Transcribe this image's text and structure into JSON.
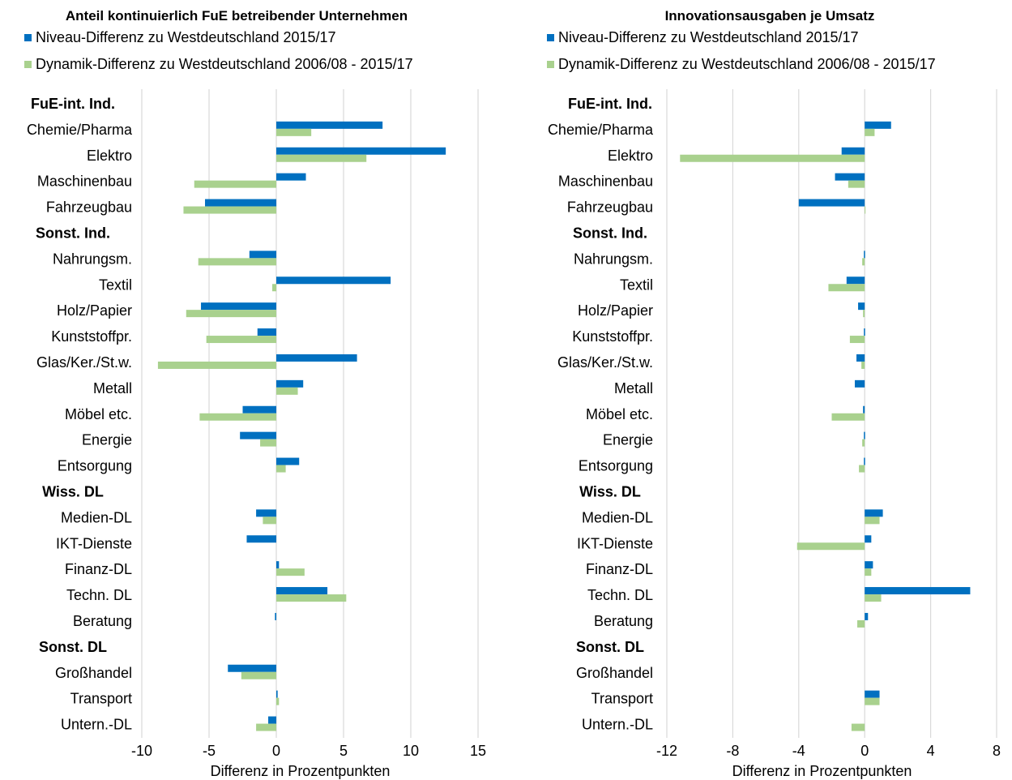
{
  "chart_data": [
    {
      "type": "bar",
      "orientation": "horizontal",
      "title": "Anteil kontinuierlich FuE betreibender Unternehmen",
      "xlabel": "Differenz in Prozentpunkten",
      "xlim": [
        -10,
        15
      ],
      "xticks": [
        "-10",
        "-5",
        "0",
        "5",
        "10",
        "15"
      ],
      "grid": true,
      "legend_position": "top",
      "categories": [
        {
          "label": "FuE-int. Ind.",
          "group": true
        },
        {
          "label": "Chemie/Pharma"
        },
        {
          "label": "Elektro"
        },
        {
          "label": "Maschinenbau"
        },
        {
          "label": "Fahrzeugbau"
        },
        {
          "label": "Sonst. Ind.",
          "group": true
        },
        {
          "label": "Nahrungsm."
        },
        {
          "label": "Textil"
        },
        {
          "label": "Holz/Papier"
        },
        {
          "label": "Kunststoffpr."
        },
        {
          "label": "Glas/Ker./St.w."
        },
        {
          "label": "Metall"
        },
        {
          "label": "Möbel etc."
        },
        {
          "label": "Energie"
        },
        {
          "label": "Entsorgung"
        },
        {
          "label": "Wiss. DL",
          "group": true
        },
        {
          "label": "Medien-DL"
        },
        {
          "label": "IKT-Dienste"
        },
        {
          "label": "Finanz-DL"
        },
        {
          "label": "Techn. DL"
        },
        {
          "label": "Beratung"
        },
        {
          "label": "Sonst. DL",
          "group": true
        },
        {
          "label": "Großhandel"
        },
        {
          "label": "Transport"
        },
        {
          "label": "Untern.-DL"
        }
      ],
      "series": [
        {
          "name": "Niveau-Differenz zu Westdeutschland 2015/17",
          "color": "#0070C0",
          "values": [
            null,
            7.9,
            12.6,
            2.2,
            -5.3,
            null,
            -2.0,
            8.5,
            -5.6,
            -1.4,
            6.0,
            2.0,
            -2.5,
            -2.7,
            1.7,
            null,
            -1.5,
            -2.2,
            0.2,
            3.8,
            -0.1,
            null,
            -3.6,
            0.1,
            -0.6
          ]
        },
        {
          "name": "Dynamik-Differenz zu Westdeutschland 2006/08 - 2015/17",
          "color": "#A9D18E",
          "values": [
            null,
            2.6,
            6.7,
            -6.1,
            -6.9,
            null,
            -5.8,
            -0.3,
            -6.7,
            -5.2,
            -8.8,
            1.6,
            -5.7,
            -1.2,
            0.7,
            null,
            -1.0,
            null,
            2.1,
            5.2,
            null,
            null,
            -2.6,
            0.2,
            -1.5
          ]
        }
      ]
    },
    {
      "type": "bar",
      "orientation": "horizontal",
      "title": "Innovationsausgaben je Umsatz",
      "xlabel": "Differenz in Prozentpunkten",
      "xlim": [
        -12,
        8
      ],
      "xticks": [
        "-12",
        "-8",
        "-4",
        "0",
        "4",
        "8"
      ],
      "grid": true,
      "legend_position": "top",
      "categories": [
        {
          "label": "FuE-int. Ind.",
          "group": true
        },
        {
          "label": "Chemie/Pharma"
        },
        {
          "label": "Elektro"
        },
        {
          "label": "Maschinenbau"
        },
        {
          "label": "Fahrzeugbau"
        },
        {
          "label": "Sonst. Ind.",
          "group": true
        },
        {
          "label": "Nahrungsm."
        },
        {
          "label": "Textil"
        },
        {
          "label": "Holz/Papier"
        },
        {
          "label": "Kunststoffpr."
        },
        {
          "label": "Glas/Ker./St.w."
        },
        {
          "label": "Metall"
        },
        {
          "label": "Möbel etc."
        },
        {
          "label": "Energie"
        },
        {
          "label": "Entsorgung"
        },
        {
          "label": "Wiss. DL",
          "group": true
        },
        {
          "label": "Medien-DL"
        },
        {
          "label": "IKT-Dienste"
        },
        {
          "label": "Finanz-DL"
        },
        {
          "label": "Techn. DL"
        },
        {
          "label": "Beratung"
        },
        {
          "label": "Sonst. DL",
          "group": true
        },
        {
          "label": "Großhandel"
        },
        {
          "label": "Transport"
        },
        {
          "label": "Untern.-DL"
        }
      ],
      "series": [
        {
          "name": "Niveau-Differenz zu Westdeutschland 2015/17",
          "color": "#0070C0",
          "values": [
            null,
            1.6,
            -1.4,
            -1.8,
            -4.0,
            null,
            -0.05,
            -1.1,
            -0.4,
            -0.05,
            -0.5,
            -0.6,
            -0.1,
            -0.05,
            -0.05,
            null,
            1.1,
            0.4,
            0.5,
            6.4,
            0.2,
            null,
            null,
            0.9,
            null
          ]
        },
        {
          "name": "Dynamik-Differenz zu Westdeutschland 2006/08 - 2015/17",
          "color": "#A9D18E",
          "values": [
            null,
            0.6,
            -11.2,
            -1.0,
            0.0,
            null,
            -0.15,
            -2.2,
            -0.1,
            -0.9,
            -0.2,
            null,
            -2.0,
            -0.15,
            -0.35,
            null,
            0.9,
            -4.1,
            0.4,
            1.0,
            -0.45,
            null,
            null,
            0.9,
            -0.8
          ]
        }
      ]
    }
  ]
}
